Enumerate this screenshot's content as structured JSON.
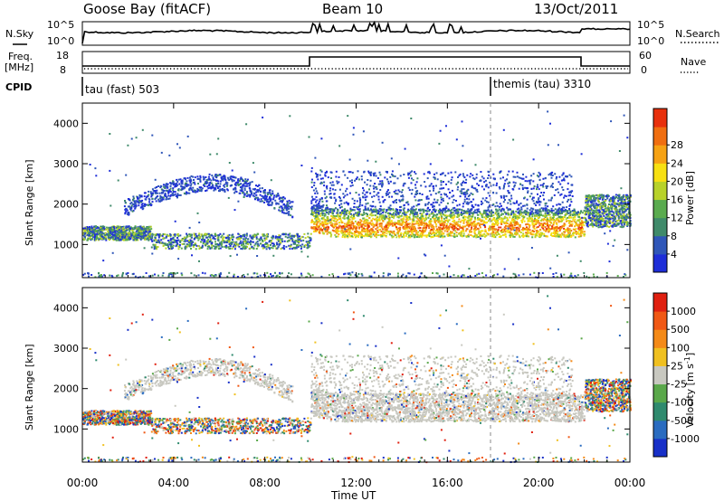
{
  "header": {
    "station": "Goose Bay (fitACF)",
    "beam": "Beam 10",
    "date": "13/Oct/2011"
  },
  "top_panels": {
    "nsky_label": "N.Sky",
    "nsky_ticks": [
      "10^5",
      "10^0"
    ],
    "nsearch_label": "N.Search",
    "nsearch_ticks": [
      "10^5",
      "10^0"
    ],
    "freq_label": "Freq.",
    "freq_unit": "[MHz]",
    "freq_ticks": [
      "18",
      "8"
    ],
    "nave_label": "Nave",
    "nave_ticks": [
      "60",
      "0"
    ],
    "cpid_label": "CPID",
    "cpid_programs": [
      {
        "name": "tau (fast) 503",
        "start_hour": 0,
        "end_hour": 18
      },
      {
        "name": "themis (tau) 3310",
        "start_hour": 18,
        "end_hour": 24
      }
    ]
  },
  "chart_data": [
    {
      "type": "heatmap",
      "title": "Power",
      "ylabel": "Slant Range [km]",
      "ylim": [
        180,
        4500
      ],
      "yticks": [
        "1000",
        "2000",
        "3000",
        "4000"
      ],
      "colorbar_label": "Power [dB]",
      "colorbar_ticks": [
        "4",
        "8",
        "12",
        "16",
        "20",
        "24",
        "28"
      ],
      "colors": [
        "#1e2ed8",
        "#2f56b8",
        "#3f8a6a",
        "#5aab4f",
        "#b8d22a",
        "#f7e012",
        "#f6a214",
        "#f06e10",
        "#e8300c"
      ],
      "echo_regions": [
        {
          "name": "early-band",
          "x_range": [
            0.0,
            3.0
          ],
          "y_center": 1300,
          "thickness": 350
        },
        {
          "name": "high-arc",
          "x_range": [
            1.8,
            9.2
          ],
          "y_center": 2400,
          "thickness": 420
        },
        {
          "name": "mid-band",
          "x_range": [
            3.0,
            10.0
          ],
          "y_center": 1100,
          "thickness": 380
        },
        {
          "name": "main-band",
          "x_range": [
            10.0,
            22.0
          ],
          "y_center": 1550,
          "thickness": 700
        },
        {
          "name": "scatter-upper",
          "x_range": [
            10.0,
            21.5
          ],
          "y_center": 2300,
          "thickness": 900
        },
        {
          "name": "late-band",
          "x_range": [
            22.0,
            24.0
          ],
          "y_center": 1850,
          "thickness": 800
        }
      ]
    },
    {
      "type": "heatmap",
      "title": "Velocity",
      "ylabel": "Slant Range [km]",
      "ylim": [
        180,
        4500
      ],
      "yticks": [
        "1000",
        "2000",
        "3000",
        "4000"
      ],
      "colorbar_label": "Velocity [m s",
      "colorbar_label_sup": "-1",
      "colorbar_label_end": "]",
      "colorbar_ticks": [
        "1000",
        "500",
        "100",
        "25",
        "-25",
        "-100",
        "-500",
        "-1000"
      ],
      "colors": [
        "#1830c8",
        "#2a6cc0",
        "#2f8a6e",
        "#5aa84a",
        "#c8c8c0",
        "#f0c020",
        "#f48a18",
        "#f05814",
        "#e02010"
      ],
      "ground_scatter_color": "#c8c8c0"
    }
  ],
  "xaxis": {
    "label": "Time UT",
    "ticks": [
      "00:00",
      "04:00",
      "08:00",
      "12:00",
      "16:00",
      "20:00",
      "00:00"
    ],
    "xlim_hours": [
      0,
      24
    ]
  }
}
